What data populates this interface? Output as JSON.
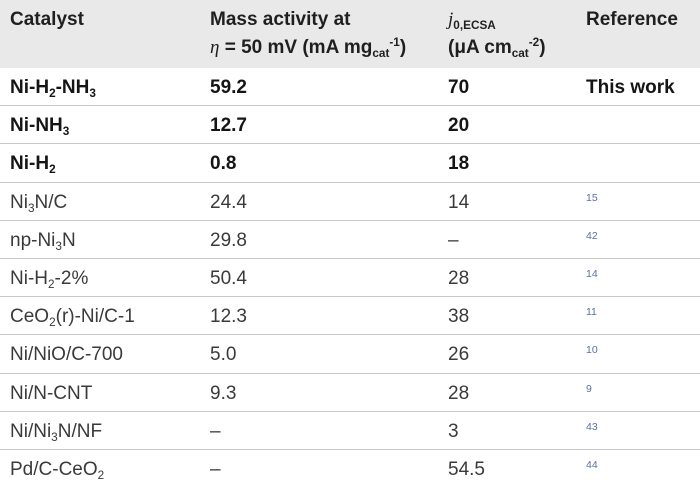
{
  "header": {
    "catalyst": "Catalyst",
    "mass_line1": "Mass activity at",
    "mass_eta": "η",
    "mass_eq": " = 50 mV (mA mg",
    "mass_sub": "cat",
    "mass_sup": "-1",
    "mass_close": ")",
    "j_symbol": "j",
    "j_sub": "0,ECSA",
    "j_open": "(μA cm",
    "j_unit_sub": "cat",
    "j_sup": "-2",
    "j_close": ")",
    "reference": "Reference"
  },
  "rows": [
    {
      "catalyst_html": "Ni-H<sub>2</sub>-NH<sub>3</sub>",
      "mass": "59.2",
      "j": "70",
      "ref": "This work",
      "bold": true
    },
    {
      "catalyst_html": "Ni-NH<sub>3</sub>",
      "mass": "12.7",
      "j": "20",
      "ref": "",
      "bold": true
    },
    {
      "catalyst_html": "Ni-H<sub>2</sub>",
      "mass": "0.8",
      "j": "18",
      "ref": "",
      "bold": true
    },
    {
      "catalyst_html": "Ni<sub>3</sub>N/C",
      "mass": "24.4",
      "j": "14",
      "ref": "15",
      "bold": false
    },
    {
      "catalyst_html": "np-Ni<sub>3</sub>N",
      "mass": "29.8",
      "j": "–",
      "ref": "42",
      "bold": false
    },
    {
      "catalyst_html": "Ni-H<sub>2</sub>-2%",
      "mass": "50.4",
      "j": "28",
      "ref": "14",
      "bold": false
    },
    {
      "catalyst_html": "CeO<sub>2</sub>(r)-Ni/C-1",
      "mass": "12.3",
      "j": "38",
      "ref": "11",
      "bold": false
    },
    {
      "catalyst_html": "Ni/NiO/C-700",
      "mass": "5.0",
      "j": "26",
      "ref": "10",
      "bold": false
    },
    {
      "catalyst_html": "Ni/N-CNT",
      "mass": "9.3",
      "j": "28",
      "ref": "9",
      "bold": false
    },
    {
      "catalyst_html": "Ni/Ni<sub>3</sub>N/NF",
      "mass": "–",
      "j": "3",
      "ref": "43",
      "bold": false
    },
    {
      "catalyst_html": "Pd/C-CeO<sub>2</sub>",
      "mass": "–",
      "j": "54.5",
      "ref": "44",
      "bold": false
    }
  ]
}
